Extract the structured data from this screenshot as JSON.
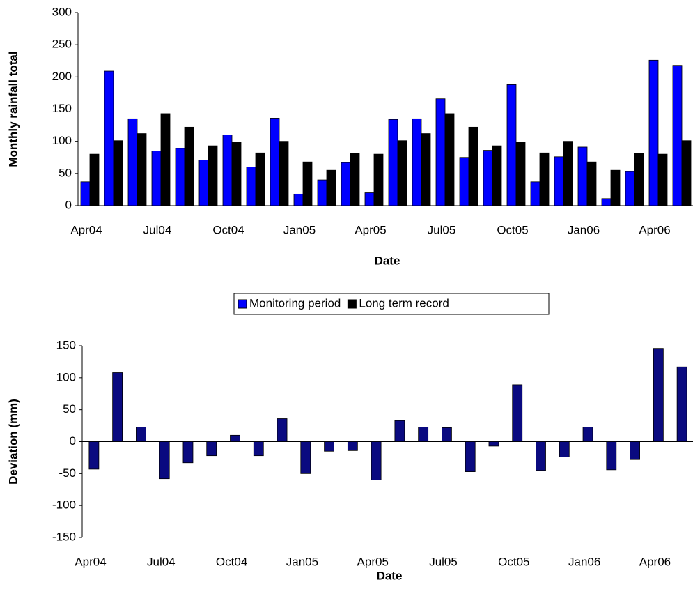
{
  "chart_data": [
    {
      "type": "bar",
      "xlabel": "Date",
      "ylabel": "Monthly rainfall total",
      "categories": [
        "Apr04",
        null,
        null,
        "Jul04",
        null,
        null,
        "Oct04",
        null,
        null,
        "Jan05",
        null,
        null,
        "Apr05",
        null,
        null,
        "Jul05",
        null,
        null,
        "Oct05",
        null,
        null,
        "Jan06",
        null,
        null,
        "Apr06",
        null
      ],
      "series": [
        {
          "name": "Monitoring period",
          "color": "#0000ff",
          "values": [
            37,
            209,
            135,
            85,
            89,
            71,
            110,
            60,
            136,
            18,
            40,
            67,
            20,
            134,
            135,
            166,
            75,
            86,
            188,
            37,
            76,
            91,
            11,
            53,
            226,
            218
          ]
        },
        {
          "name": "Long term record",
          "color": "#000000",
          "values": [
            80,
            101,
            112,
            143,
            122,
            93,
            99,
            82,
            100,
            68,
            55,
            81,
            80,
            101,
            112,
            143,
            122,
            93,
            99,
            82,
            100,
            68,
            55,
            81,
            80,
            101
          ]
        }
      ],
      "ylim": [
        0,
        300
      ],
      "yticks": [
        0,
        50,
        100,
        150,
        200,
        250,
        300
      ],
      "legend": "bottom"
    },
    {
      "type": "bar",
      "xlabel": "Date",
      "ylabel": "Deviation (mm)",
      "categories": [
        "Apr04",
        null,
        null,
        "Jul04",
        null,
        null,
        "Oct04",
        null,
        null,
        "Jan05",
        null,
        null,
        "Apr05",
        null,
        null,
        "Jul05",
        null,
        null,
        "Oct05",
        null,
        null,
        "Jan06",
        null,
        null,
        "Apr06",
        null
      ],
      "series": [
        {
          "color": "#0a0a80",
          "values": [
            -43,
            108,
            23,
            -58,
            -33,
            -22,
            10,
            -22,
            36,
            -50,
            -15,
            -14,
            -60,
            33,
            23,
            22,
            -47,
            -7,
            89,
            -45,
            -24,
            23,
            -44,
            -28,
            146,
            117
          ]
        }
      ],
      "ylim": [
        -150,
        150
      ],
      "yticks": [
        -150,
        -100,
        -50,
        0,
        50,
        100,
        150
      ]
    }
  ]
}
